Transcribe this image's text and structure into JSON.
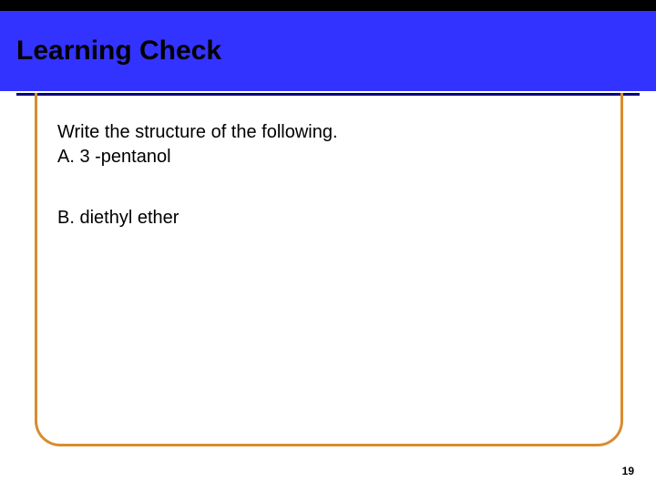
{
  "colors": {
    "top_bar": "#000000",
    "header_bg": "#3333ff",
    "header_text": "#000000",
    "header_underline": "#000080",
    "content_border": "#d98c2e",
    "body_text": "#000000",
    "background": "#ffffff"
  },
  "header": {
    "title": "Learning Check"
  },
  "content": {
    "prompt": "Write the structure of the following.",
    "item_a": "A.  3 -pentanol",
    "item_b": "B.  diethyl ether"
  },
  "footer": {
    "page_number": "19"
  },
  "typography": {
    "title_fontsize": 30,
    "body_fontsize": 20,
    "pagenum_fontsize": 12
  }
}
